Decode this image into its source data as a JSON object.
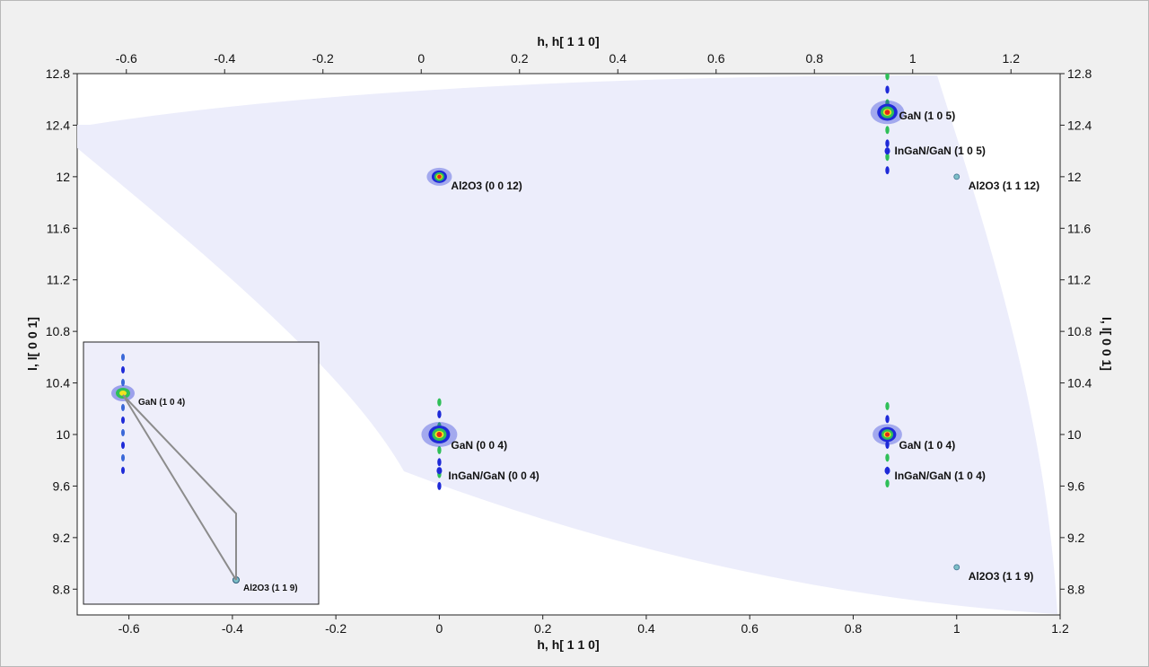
{
  "chart_data": {
    "type": "heatmap",
    "title": "",
    "xlabel": "h, h[ 1 1 0]",
    "ylabel": "l, l[ 0 0 1]",
    "xlim": [
      -0.7,
      1.2
    ],
    "ylim": [
      8.6,
      12.8
    ],
    "top_xlim": [
      -0.7,
      1.3
    ],
    "x_ticks": [
      -0.6,
      -0.4,
      -0.2,
      0,
      0.2,
      0.4,
      0.6,
      0.8,
      1,
      1.2
    ],
    "x_tick_labels": [
      "-0.6",
      "-0.4",
      "-0.2",
      "0",
      "0.2",
      "0.4",
      "0.6",
      "0.8",
      "1",
      "1.2"
    ],
    "top_x_ticks": [
      -0.6,
      -0.4,
      -0.2,
      0,
      0.2,
      0.4,
      0.6,
      0.8,
      1,
      1.2
    ],
    "top_x_tick_labels": [
      "-0.6",
      "-0.4",
      "-0.2",
      "0",
      "0.2",
      "0.4",
      "0.6",
      "0.8",
      "1",
      "1.2"
    ],
    "y_ticks": [
      8.8,
      9.2,
      9.6,
      10,
      10.4,
      10.8,
      11.2,
      11.6,
      12,
      12.4,
      12.8
    ],
    "y_tick_labels": [
      "8.8",
      "9.2",
      "9.6",
      "10",
      "10.4",
      "10.8",
      "11.2",
      "11.6",
      "12",
      "12.4",
      "12.8"
    ],
    "grid": false,
    "peaks": [
      {
        "label": "Al2O3 (0 0 12)",
        "h": 0.0,
        "l": 12.0,
        "intensity": 0.5
      },
      {
        "label": "GaN (0 0 4)",
        "h": 0.0,
        "l": 10.0,
        "intensity": 1.0
      },
      {
        "label": "InGaN/GaN (0 0 4)",
        "h": 0.0,
        "l": 9.72,
        "intensity": 0.4
      },
      {
        "label": "GaN (1 0 5)",
        "h": 0.866,
        "l": 12.5,
        "intensity": 0.9
      },
      {
        "label": "InGaN/GaN (1 0 5)",
        "h": 0.866,
        "l": 12.2,
        "intensity": 0.35
      },
      {
        "label": "Al2O3 (1 1 12)",
        "h": 1.0,
        "l": 12.0,
        "intensity": 0.1
      },
      {
        "label": "GaN (1 0 4)",
        "h": 0.866,
        "l": 10.0,
        "intensity": 0.7
      },
      {
        "label": "InGaN/GaN (1 0 4)",
        "h": 0.866,
        "l": 9.72,
        "intensity": 0.3
      },
      {
        "label": "Al2O3 (1 1 9)",
        "h": 1.0,
        "l": 8.97,
        "intensity": 0.2
      }
    ],
    "inset": {
      "labels": [
        "GaN (1 0 4)",
        "Al2O3 (1 1 9)"
      ]
    },
    "colors": {
      "coverage": "#ecedfb",
      "low": "#1e2ad8",
      "mid": "#2fbf58",
      "high": "#f2e21f",
      "peak": "#e3281b"
    }
  }
}
